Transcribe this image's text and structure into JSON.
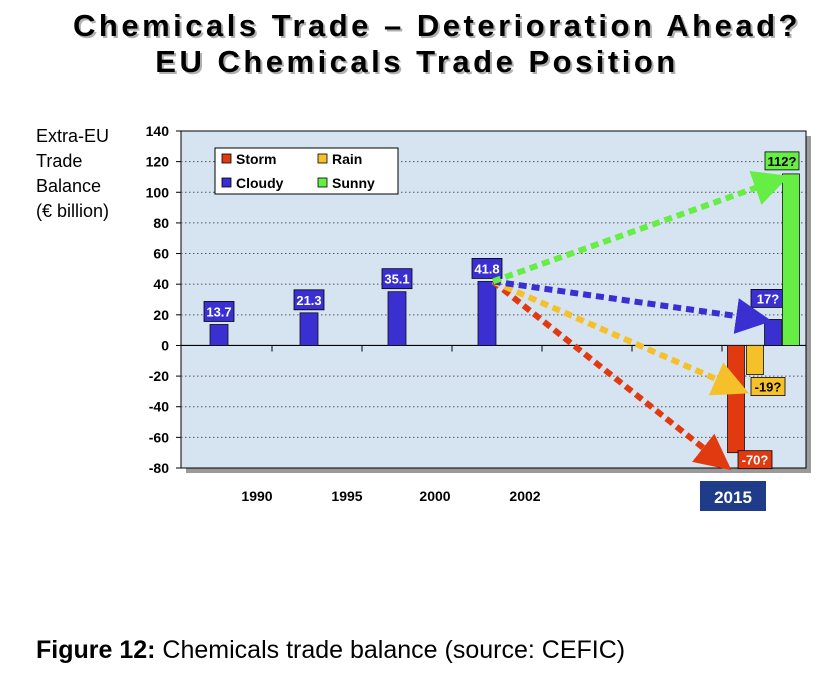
{
  "title_line1": "Chemicals Trade – Deterioration Ahead?",
  "title_line2": "EU Chemicals Trade Position",
  "ylabel_lines": [
    "Extra-EU",
    "Trade",
    "Balance",
    "(€ billion)"
  ],
  "caption": {
    "label": "Figure 12:",
    "text": " Chemicals trade balance (source: CEFIC)"
  },
  "colors": {
    "plot_bg": "#d6e4f2",
    "bar_blue": "#3a2fd0",
    "storm": "#e23a10",
    "rain": "#f5c02a",
    "cloudy": "#3a2fd0",
    "sunny": "#66ee44",
    "year_2015_bg": "#1f3c8a"
  },
  "chart_data": {
    "type": "bar",
    "ylim": [
      -80,
      140
    ],
    "yticks": [
      140,
      120,
      100,
      80,
      60,
      40,
      20,
      0,
      -20,
      -40,
      -60,
      -80
    ],
    "grid": true,
    "legend_position": "top-left",
    "legend": [
      {
        "name": "Storm",
        "color": "#e23a10"
      },
      {
        "name": "Rain",
        "color": "#f5c02a"
      },
      {
        "name": "Cloudy",
        "color": "#3a2fd0"
      },
      {
        "name": "Sunny",
        "color": "#66ee44"
      }
    ],
    "historical": [
      {
        "year": "1990",
        "value": 13.7,
        "label": "13.7"
      },
      {
        "year": "1995",
        "value": 21.3,
        "label": "21.3"
      },
      {
        "year": "2000",
        "value": 35.1,
        "label": "35.1"
      },
      {
        "year": "2002",
        "value": 41.8,
        "label": "41.8"
      }
    ],
    "projection_year": "2015",
    "scenarios": [
      {
        "name": "Storm",
        "value": -70,
        "label": "-70?",
        "color": "#e23a10"
      },
      {
        "name": "Rain",
        "value": -19,
        "label": "-19?",
        "color": "#f5c02a"
      },
      {
        "name": "Cloudy",
        "value": 17,
        "label": "17?",
        "color": "#3a2fd0"
      },
      {
        "name": "Sunny",
        "value": 112,
        "label": "112?",
        "color": "#66ee44"
      }
    ]
  }
}
